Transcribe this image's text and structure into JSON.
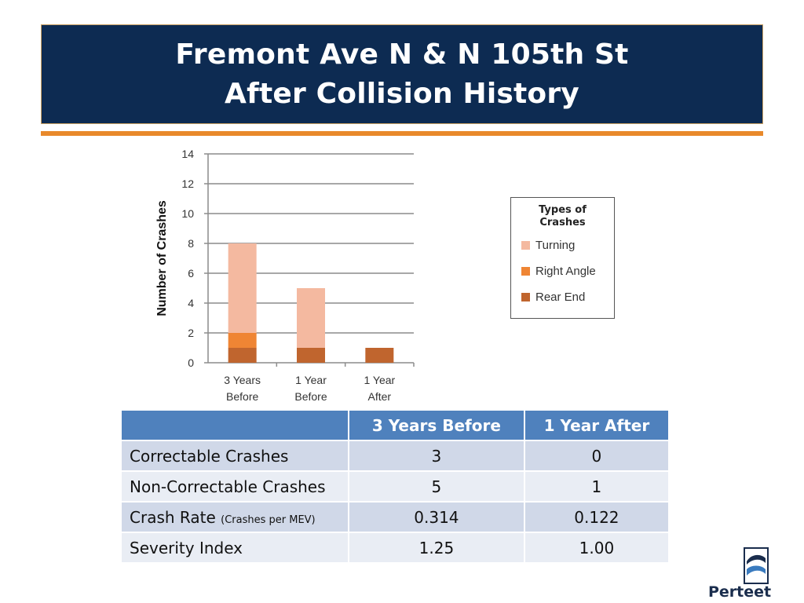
{
  "slide": {
    "title_line1": "Fremont Ave N & N 105th St",
    "title_line2": "After Collision History"
  },
  "colors": {
    "title_bg": "#0d2b52",
    "accent": "#e8892b",
    "turning": "#f4b9a0",
    "right_angle": "#ef8534",
    "rear_end": "#c0652e"
  },
  "chart_data": {
    "type": "bar",
    "stacked": true,
    "categories": [
      [
        "3 Years",
        "Before"
      ],
      [
        "1 Year",
        "Before"
      ],
      [
        "1 Year",
        "After"
      ]
    ],
    "series": [
      {
        "name": "Rear End",
        "values": [
          1,
          1,
          1
        ],
        "color": "#c0652e"
      },
      {
        "name": "Right Angle",
        "values": [
          1,
          0,
          0
        ],
        "color": "#ef8534"
      },
      {
        "name": "Turning",
        "values": [
          6,
          4,
          0
        ],
        "color": "#f4b9a0"
      }
    ],
    "ylabel": "Number of Crashes",
    "ylim": [
      0,
      14
    ],
    "yticks": [
      0,
      2,
      4,
      6,
      8,
      10,
      12,
      14
    ],
    "grid": true,
    "legend": {
      "title_line1": "Types of",
      "title_line2": "Crashes",
      "placement": "right",
      "items": [
        "Turning",
        "Right Angle",
        "Rear End"
      ]
    }
  },
  "table": {
    "headers": [
      "",
      "3  Years Before",
      "1 Year After"
    ],
    "rows": [
      {
        "label": "Correctable Crashes",
        "unit": "",
        "values": [
          "3",
          "0"
        ]
      },
      {
        "label": "Non-Correctable Crashes",
        "unit": "",
        "values": [
          "5",
          "1"
        ]
      },
      {
        "label": "Crash Rate ",
        "unit": "(Crashes per MEV)",
        "values": [
          "0.314",
          "0.122"
        ]
      },
      {
        "label": "Severity Index",
        "unit": "",
        "values": [
          "1.25",
          "1.00"
        ]
      }
    ]
  },
  "logo": {
    "text": "Perteet"
  }
}
